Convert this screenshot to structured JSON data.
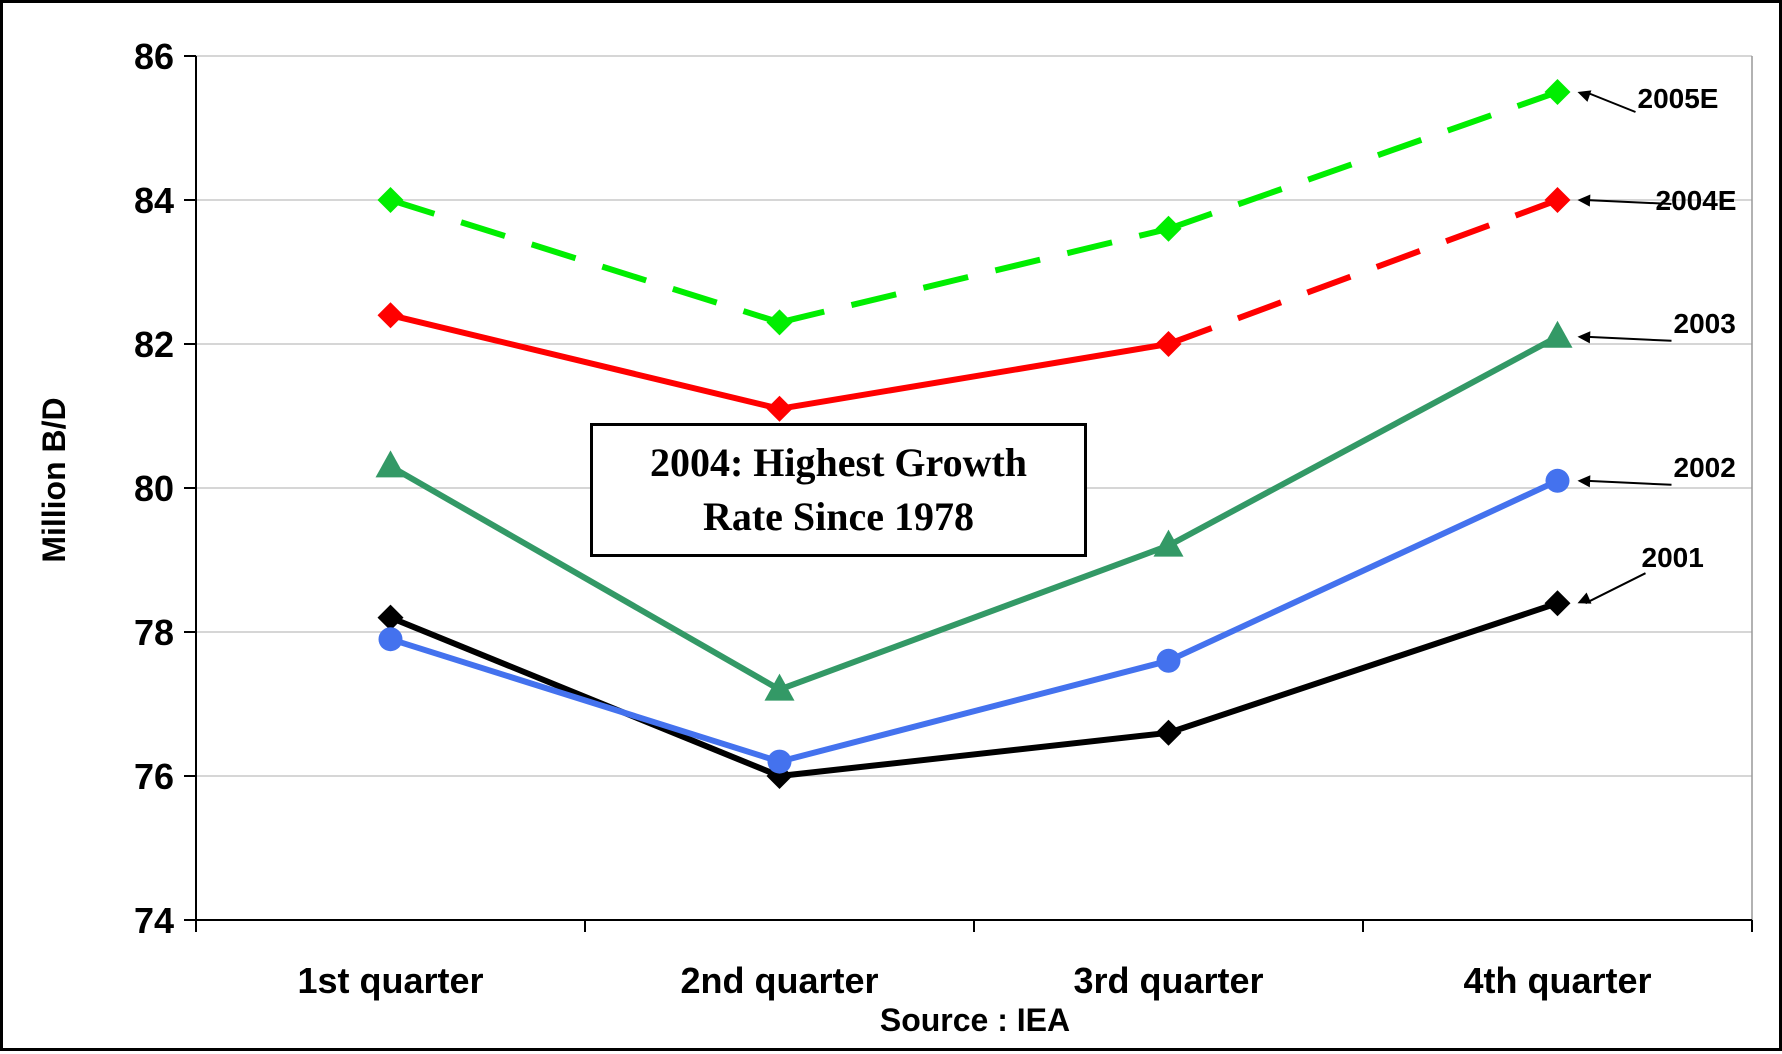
{
  "chart_data": {
    "type": "line",
    "title": "",
    "xlabel": "Source : IEA",
    "ylabel": "Million B/D",
    "categories": [
      "1st quarter",
      "2nd quarter",
      "3rd quarter",
      "4th quarter"
    ],
    "ylim": [
      74,
      86
    ],
    "yticks": [
      74,
      76,
      78,
      80,
      82,
      84,
      86
    ],
    "grid": true,
    "series": [
      {
        "name": "2001",
        "values": [
          78.2,
          76.0,
          76.6,
          78.4
        ],
        "color": "#000000",
        "marker": "diamond",
        "dashed_from": null
      },
      {
        "name": "2002",
        "values": [
          77.9,
          76.2,
          77.6,
          80.1
        ],
        "color": "#4472ee",
        "marker": "circle",
        "dashed_from": null
      },
      {
        "name": "2003",
        "values": [
          80.3,
          77.2,
          79.2,
          82.1
        ],
        "color": "#339966",
        "marker": "triangle",
        "dashed_from": null
      },
      {
        "name": "2004E",
        "values": [
          82.4,
          81.1,
          82.0,
          84.0
        ],
        "color": "#ff0000",
        "marker": "diamond",
        "dashed_from": 2
      },
      {
        "name": "2005E",
        "values": [
          84.0,
          82.3,
          83.6,
          85.5
        ],
        "color": "#00ee00",
        "marker": "diamond",
        "dashed_from": 0
      }
    ],
    "annotation": {
      "line1": "2004: Highest Growth",
      "line2": "Rate Since 1978"
    }
  }
}
